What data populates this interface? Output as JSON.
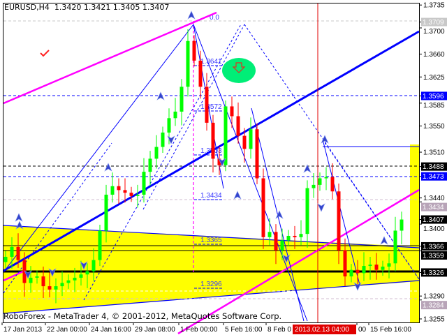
{
  "header": {
    "symbol": "EURUSD,H4",
    "ohlc": "1.3420 1.3421 1.3405 1.3407"
  },
  "footer": "RoboForex - MetaTrader 4, © 2001-2012, MetaQuotes Software Corp.",
  "colors": {
    "bull": "#00ff00",
    "bear": "#ff0000",
    "trend": "#0000ff",
    "channel": "#ff00ff",
    "zone": "#ffff00",
    "target": "#00ee77"
  },
  "chart_data": {
    "type": "candlestick",
    "title": "EURUSD,H4",
    "ylim": [
      1.3245,
      1.3745
    ],
    "y_ticks": [
      "1.3735",
      "1.3700",
      "1.3660",
      "1.3625",
      "1.3585",
      "1.3550",
      "1.3510",
      "1.3440",
      "1.3400",
      "1.3290",
      "1.3255"
    ],
    "x_ticks": [
      "17 Jan 2013",
      "22 Jan 00:00",
      "24 Jan 16:00",
      "29 Jan 08:00",
      "1 Feb 00:00",
      "5 Feb 16:00",
      "8 Feb 0",
      "00",
      "15 Feb 16:00"
    ],
    "cursor_time": "2013.02.13 04:00",
    "closes": [
      1.335,
      1.3365,
      1.3345,
      1.331,
      1.3318,
      1.332,
      1.3305,
      1.33,
      1.3305,
      1.331,
      1.3314,
      1.3318,
      1.3323,
      1.3328,
      1.3345,
      1.339,
      1.3445,
      1.3458,
      1.3452,
      1.3448,
      1.3443,
      1.3445,
      1.348,
      1.35,
      1.3518,
      1.354,
      1.3562,
      1.3572,
      1.361,
      1.368,
      1.365,
      1.361,
      1.3555,
      1.35,
      1.349,
      1.358,
      1.3565,
      1.3535,
      1.3515,
      1.3545,
      1.347,
      1.338,
      1.3388,
      1.336,
      1.3375,
      1.3382,
      1.338,
      1.3385,
      1.3455,
      1.346,
      1.347,
      1.3472,
      1.345,
      1.336,
      1.332,
      1.333,
      1.3325,
      1.3336,
      1.3338,
      1.333,
      1.3335,
      1.334,
      1.339,
      1.3407
    ],
    "price_labels": [
      {
        "value": "1.3709",
        "style": "grey"
      },
      {
        "value": "1.3596",
        "style": "blue"
      },
      {
        "value": "1.3488",
        "style": "black"
      },
      {
        "value": "1.3473",
        "style": "blue"
      },
      {
        "value": "1.3434",
        "style": "pink"
      },
      {
        "value": "1.3407",
        "style": "black"
      },
      {
        "value": "1.3366",
        "style": "black"
      },
      {
        "value": "1.3359",
        "style": "black"
      },
      {
        "value": "1.3326",
        "style": "black"
      },
      {
        "value": "1.3284",
        "style": "pink"
      }
    ],
    "fib_labels": [
      "0.0",
      "1.3641",
      "1.3572",
      "1.3503",
      "1.3434",
      "1.3365",
      "1.3296"
    ]
  }
}
